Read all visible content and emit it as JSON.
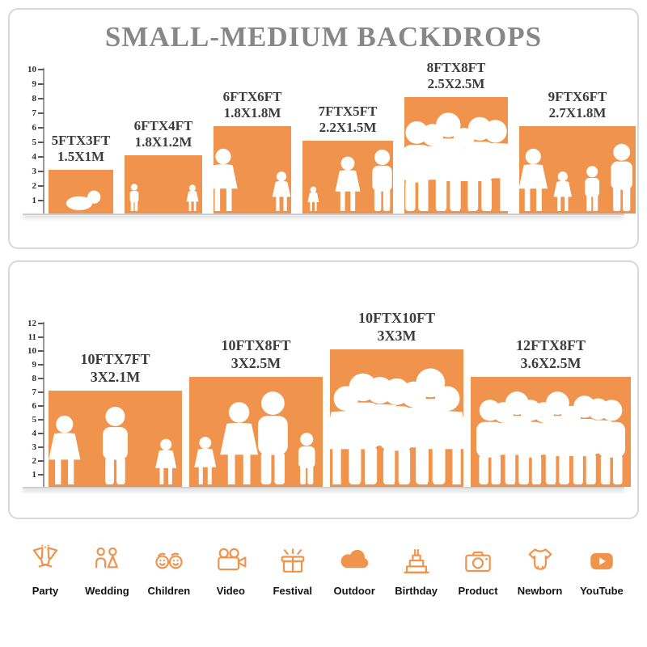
{
  "page": {
    "title": "SMALL-MEDIUM BACKDROPS"
  },
  "colors": {
    "accent": "#F0944D",
    "title_gray": "#878787",
    "label_dark": "#3C3C3C"
  },
  "chart_data": [
    {
      "type": "bar",
      "title": "SMALL-MEDIUM BACKDROPS",
      "panel": "small-backdrops",
      "ylim": [
        0,
        10
      ],
      "yticks": [
        1,
        2,
        3,
        4,
        5,
        6,
        7,
        8,
        9,
        10
      ],
      "unit": "FT",
      "bars": [
        {
          "label_ft": "5FTX3FT",
          "label_m": "1.5X1M",
          "width_ft": 5,
          "height_ft": 3,
          "figures": [
            "baby"
          ]
        },
        {
          "label_ft": "6FTX4FT",
          "label_m": "1.8X1.2M",
          "width_ft": 6,
          "height_ft": 4,
          "figures": [
            "boy",
            "girl"
          ]
        },
        {
          "label_ft": "6FTX6FT",
          "label_m": "1.8X1.8M",
          "width_ft": 6,
          "height_ft": 6,
          "figures": [
            "woman",
            "girl"
          ]
        },
        {
          "label_ft": "7FTX5FT",
          "label_m": "2.2X1.5M",
          "width_ft": 7,
          "height_ft": 5,
          "figures": [
            "toddler",
            "woman",
            "man"
          ]
        },
        {
          "label_ft": "8FTX8FT",
          "label_m": "2.5X2.5M",
          "width_ft": 8,
          "height_ft": 8,
          "figures": [
            "man",
            "woman",
            "man",
            "woman",
            "man",
            "woman"
          ]
        },
        {
          "label_ft": "9FTX6FT",
          "label_m": "2.7X1.8M",
          "width_ft": 9,
          "height_ft": 6,
          "figures": [
            "woman",
            "girl",
            "boy",
            "man"
          ]
        }
      ]
    },
    {
      "type": "bar",
      "panel": "medium-backdrops",
      "ylim": [
        0,
        12
      ],
      "yticks": [
        1,
        2,
        3,
        4,
        5,
        6,
        7,
        8,
        9,
        10,
        11,
        12
      ],
      "unit": "FT",
      "bars": [
        {
          "label_ft": "10FTX7FT",
          "label_m": "3X2.1M",
          "width_ft": 10,
          "height_ft": 7,
          "figures": [
            "woman",
            "man",
            "girl"
          ]
        },
        {
          "label_ft": "10FTX8FT",
          "label_m": "3X2.5M",
          "width_ft": 10,
          "height_ft": 8,
          "figures": [
            "girl",
            "woman",
            "man",
            "boy"
          ]
        },
        {
          "label_ft": "10FTX10FT",
          "label_m": "3X3M",
          "width_ft": 10,
          "height_ft": 10,
          "figures": [
            "woman",
            "man",
            "woman",
            "man",
            "woman",
            "man",
            "woman"
          ]
        },
        {
          "label_ft": "12FTX8FT",
          "label_m": "3.6X2.5M",
          "width_ft": 12,
          "height_ft": 8,
          "figures": [
            "man",
            "woman",
            "man",
            "man",
            "woman",
            "man",
            "woman",
            "man",
            "woman",
            "man"
          ]
        }
      ]
    }
  ],
  "categories": [
    {
      "icon": "party-icon",
      "label": "Party"
    },
    {
      "icon": "wedding-icon",
      "label": "Wedding"
    },
    {
      "icon": "children-icon",
      "label": "Children"
    },
    {
      "icon": "video-icon",
      "label": "Video"
    },
    {
      "icon": "festival-icon",
      "label": "Festival"
    },
    {
      "icon": "outdoor-icon",
      "label": "Outdoor"
    },
    {
      "icon": "birthday-icon",
      "label": "Birthday"
    },
    {
      "icon": "product-icon",
      "label": "Product"
    },
    {
      "icon": "newborn-icon",
      "label": "Newborn"
    },
    {
      "icon": "youtube-icon",
      "label": "YouTube"
    }
  ]
}
